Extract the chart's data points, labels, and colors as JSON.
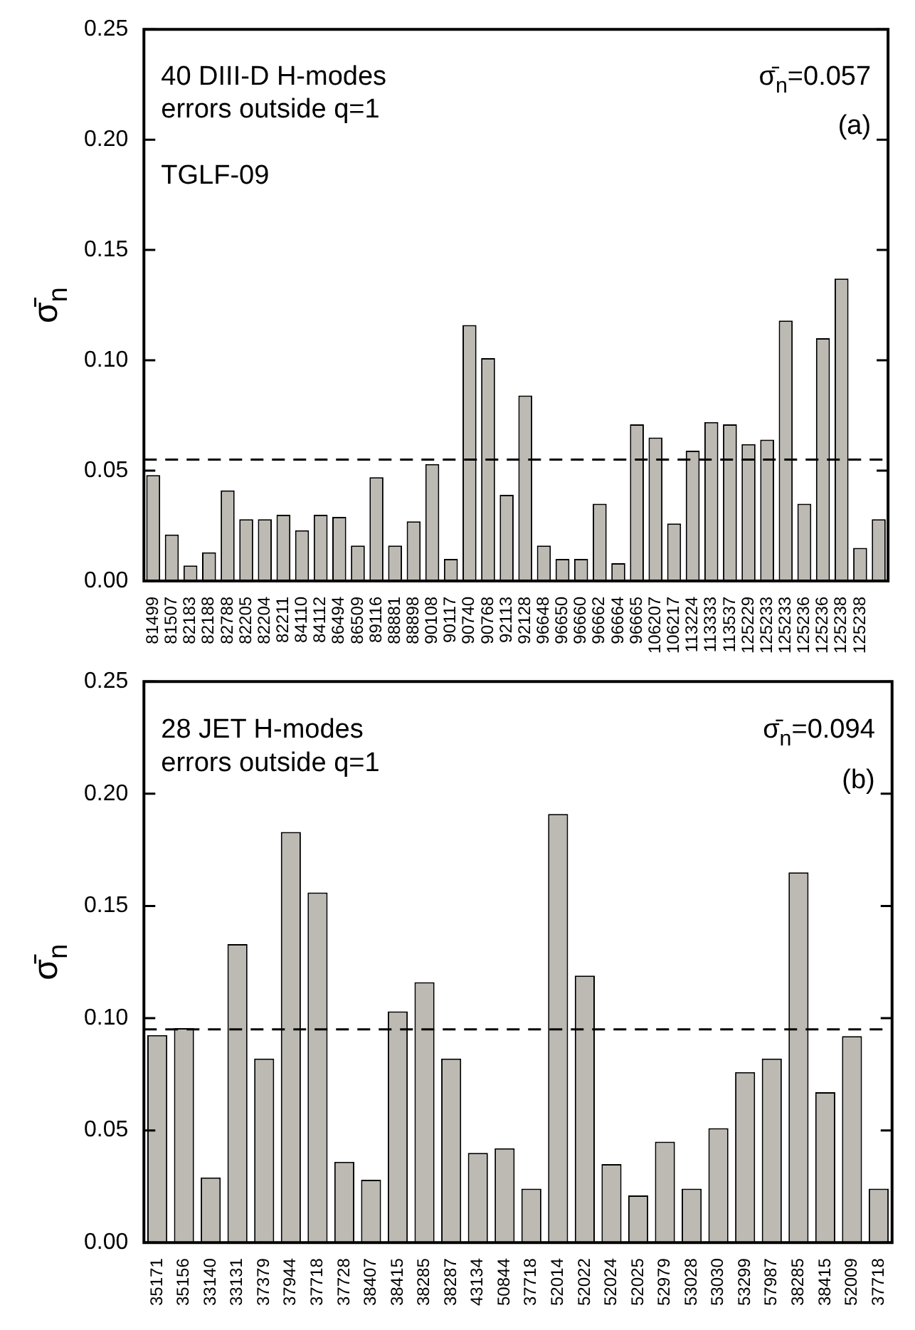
{
  "chart_data": [
    {
      "type": "bar",
      "ylabel": "σ̄$_{n}$",
      "categories": [
        "81499",
        "81507",
        "82183",
        "82188",
        "82788",
        "82205",
        "82204",
        "82211",
        "84110",
        "84112",
        "86494",
        "86509",
        "89116",
        "88881",
        "88898",
        "90108",
        "90117",
        "90740",
        "90768",
        "92113",
        "92128",
        "96648",
        "96650",
        "96660",
        "96662",
        "96664",
        "96665",
        "106207",
        "106217",
        "113224",
        "113333",
        "113537",
        "125229",
        "125233",
        "125233",
        "125236",
        "125236",
        "125238",
        "125238",
        null
      ],
      "values": [
        0.048,
        0.021,
        0.007,
        0.013,
        0.041,
        0.028,
        0.028,
        0.03,
        0.023,
        0.03,
        0.029,
        0.016,
        0.047,
        0.016,
        0.027,
        0.053,
        0.01,
        0.116,
        0.101,
        0.039,
        0.084,
        0.016,
        0.01,
        0.01,
        0.035,
        0.008,
        0.071,
        0.065,
        0.026,
        0.059,
        0.072,
        0.071,
        0.062,
        0.064,
        0.118,
        0.035,
        0.11,
        0.137,
        0.015,
        0.028
      ],
      "color": "#bdbab3",
      "ylim": [
        0,
        0.25
      ],
      "yticks": [
        "0.00",
        0.05,
        "0.10",
        0.15,
        "0.20",
        0.25
      ],
      "ref_lines": [
        {
          "axis": "y",
          "value": 0.055,
          "color": "#000000",
          "line_style": "dashed"
        }
      ],
      "annotations": [
        "40 DIII-D H-modes",
        "errors outside q=1",
        "TGLF-09",
        "σ̄$_{n}$=0.057",
        "(a)"
      ]
    },
    {
      "type": "bar",
      "ylabel": "σ̄$_{n}$",
      "categories": [
        "35171",
        "35156",
        "33140",
        "33131",
        "37379",
        "37944",
        "37718",
        "37728",
        "38407",
        "38415",
        "38285",
        "38287",
        "43134",
        "50844",
        "37718",
        "52014",
        "52022",
        "52024",
        "52025",
        "52979",
        "53028",
        "53030",
        "53299",
        "57987",
        "38285",
        "38415",
        "52009",
        "37718"
      ],
      "values": [
        0.0925,
        0.0956,
        0.029,
        0.133,
        0.082,
        0.183,
        0.156,
        0.036,
        0.028,
        0.103,
        0.116,
        0.082,
        0.04,
        0.042,
        0.024,
        0.191,
        0.119,
        0.035,
        0.021,
        0.045,
        0.024,
        0.051,
        0.076,
        0.082,
        0.165,
        0.067,
        0.092,
        0.024
      ],
      "color": "#bdbab3",
      "ylim": [
        0,
        0.25
      ],
      "yticks": [
        "0.00",
        0.05,
        "0.10",
        0.15,
        "0.20",
        0.25
      ],
      "ref_lines": [
        {
          "axis": "y",
          "value": 0.095,
          "color": "#000000",
          "line_style": "dashed"
        }
      ],
      "annotations": [
        "28 JET H-modes",
        "errors outside q=1",
        "σ̄$_{n}$=0.094",
        "(b)"
      ]
    }
  ]
}
